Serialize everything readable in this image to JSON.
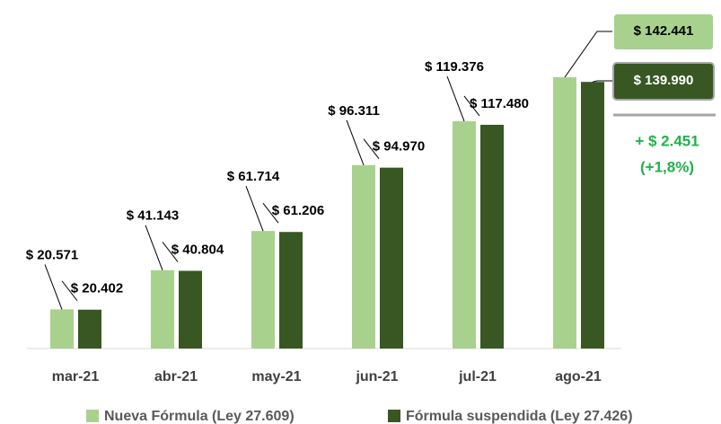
{
  "chart_data": {
    "type": "bar",
    "categories": [
      "mar-21",
      "abr-21",
      "may-21",
      "jun-21",
      "jul-21",
      "ago-21"
    ],
    "series": [
      {
        "name": "Nueva Fórmula (Ley 27.609)",
        "color": "#a9d18e",
        "values": [
          20571,
          41143,
          61714,
          96311,
          119376,
          142441
        ],
        "value_labels": [
          "$ 20.571",
          "$ 41.143",
          "$ 61.714",
          "$ 96.311",
          "$ 119.376",
          "$ 142.441"
        ]
      },
      {
        "name": "Fórmula suspendida (Ley 27.426)",
        "color": "#385723",
        "values": [
          20402,
          40804,
          61206,
          94970,
          117480,
          139990
        ],
        "value_labels": [
          "$ 20.402",
          "$ 40.804",
          "$ 61.206",
          "$ 94.970",
          "$ 117.480",
          "$ 139.990"
        ]
      }
    ],
    "annotations": [
      "+ $ 2.451",
      "(+1,8%)"
    ],
    "annotation_color": "#1fb24a"
  }
}
